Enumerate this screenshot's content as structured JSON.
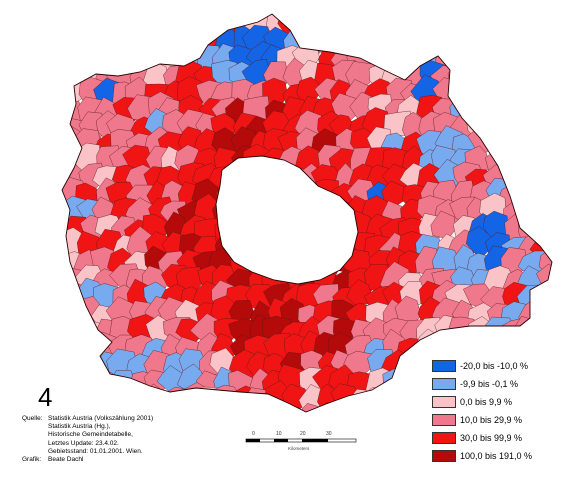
{
  "map_number": "4",
  "credits": {
    "source_key": "Quelle:",
    "source_1": "Statistik Austria (Volkszählung 2001)",
    "source_2": "Statistik Austria (Hg.),",
    "source_3": "Historische Gemeindetabelle,",
    "source_4": "Letztes Update: 23.4.02.",
    "source_5": "Gebietsstand: 01.01.2001. Wien.",
    "graphic_key": "Grafik:",
    "graphic_author": "Beate Dachl"
  },
  "scalebar": {
    "ticks": [
      "0",
      "10",
      "20",
      "30"
    ],
    "unit": "Kilometers"
  },
  "legend": {
    "items": [
      {
        "label": "-20,0 bis -10,0  %",
        "color": "#1464e6"
      },
      {
        "label": "-9,9 bis -0,1  %",
        "color": "#78aaf0"
      },
      {
        "label": "0,0 bis 9,9  %",
        "color": "#fac3c8"
      },
      {
        "label": "10,0 bis 29,9  %",
        "color": "#f0788c"
      },
      {
        "label": "30,0 bis 99,9  %",
        "color": "#f01414"
      },
      {
        "label": "100,0 bis 191,0  %",
        "color": "#b40a0a"
      }
    ]
  },
  "colors": {
    "c1": "#1464e6",
    "c2": "#78aaf0",
    "c3": "#fac3c8",
    "c4": "#f0788c",
    "c5": "#f01414",
    "c6": "#b40a0a",
    "border": "#5a1a1a"
  }
}
